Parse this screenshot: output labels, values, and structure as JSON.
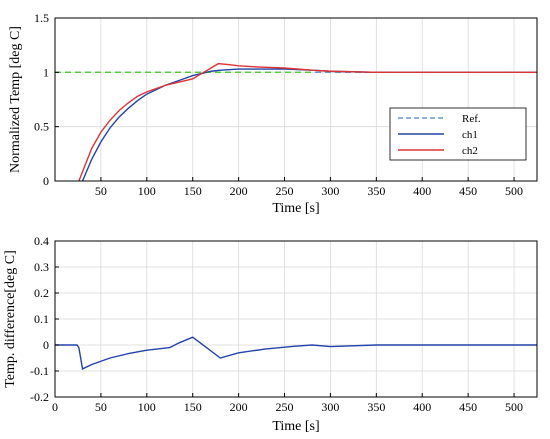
{
  "chart_data": [
    {
      "type": "line",
      "xlabel": "Time [s]",
      "ylabel": "Normalized Temp [deg C]",
      "xlim": [
        0,
        525
      ],
      "ylim": [
        0,
        1.5
      ],
      "xticks": [
        50,
        100,
        150,
        200,
        250,
        300,
        350,
        400,
        450,
        500
      ],
      "yticks": [
        0,
        0.5,
        1,
        1.5
      ],
      "xtick_labels": [
        "50",
        "100",
        "150",
        "200",
        "250",
        "300",
        "350",
        "400",
        "450",
        "500"
      ],
      "ytick_labels": [
        "0",
        "0.5",
        "1",
        "1.5"
      ],
      "grid": true,
      "legend": "right",
      "series": [
        {
          "name": "Ref.",
          "color": "#6699cc",
          "style": "dashed",
          "x": [
            0,
            525
          ],
          "y": [
            1,
            1
          ]
        },
        {
          "name": "",
          "color": "#55cc33",
          "style": "dashed",
          "x": [
            0,
            280
          ],
          "y": [
            1,
            1
          ]
        },
        {
          "name": "ch1",
          "color": "#2244aa",
          "style": "solid",
          "x": [
            30,
            40,
            50,
            60,
            70,
            80,
            90,
            100,
            110,
            120,
            130,
            140,
            150,
            160,
            170,
            180,
            200,
            220,
            250,
            280,
            300,
            350,
            400,
            450,
            500,
            525
          ],
          "y": [
            0,
            0.2,
            0.36,
            0.49,
            0.59,
            0.67,
            0.74,
            0.8,
            0.84,
            0.88,
            0.91,
            0.94,
            0.97,
            0.99,
            1.01,
            1.02,
            1.03,
            1.03,
            1.03,
            1.02,
            1.01,
            1.0,
            1.0,
            1.0,
            1.0,
            1.0
          ]
        },
        {
          "name": "ch2",
          "color": "#dd3333",
          "style": "solid",
          "x": [
            26,
            40,
            50,
            60,
            70,
            80,
            90,
            100,
            110,
            120,
            130,
            140,
            150,
            160,
            170,
            178,
            190,
            200,
            220,
            250,
            280,
            300,
            350,
            400,
            450,
            500,
            525
          ],
          "y": [
            0,
            0.3,
            0.45,
            0.56,
            0.65,
            0.72,
            0.78,
            0.82,
            0.85,
            0.88,
            0.9,
            0.92,
            0.94,
            0.99,
            1.04,
            1.08,
            1.07,
            1.06,
            1.05,
            1.04,
            1.02,
            1.01,
            1.0,
            1.0,
            1.0,
            1.0,
            1.0
          ]
        }
      ]
    },
    {
      "type": "line",
      "xlabel": "Time [s]",
      "ylabel": "Temp. difference[deg C]",
      "xlim": [
        0,
        525
      ],
      "ylim": [
        -0.2,
        0.4
      ],
      "xticks": [
        0,
        50,
        100,
        150,
        200,
        250,
        300,
        350,
        400,
        450,
        500
      ],
      "yticks": [
        -0.2,
        -0.1,
        0,
        0.1,
        0.2,
        0.3,
        0.4
      ],
      "xtick_labels": [
        "0",
        "50",
        "100",
        "150",
        "200",
        "250",
        "300",
        "350",
        "400",
        "450",
        "500"
      ],
      "ytick_labels": [
        "-0.2",
        "-0.1",
        "0",
        "0.1",
        "0.2",
        "0.3",
        "0.4"
      ],
      "grid": true,
      "series": [
        {
          "name": "",
          "color": "#2244aa",
          "style": "solid",
          "x": [
            0,
            24,
            26,
            30,
            40,
            60,
            80,
            100,
            125,
            135,
            150,
            165,
            180,
            200,
            230,
            260,
            280,
            300,
            350,
            400,
            450,
            500,
            525
          ],
          "y": [
            0,
            0,
            -0.01,
            -0.092,
            -0.075,
            -0.05,
            -0.033,
            -0.02,
            -0.01,
            0.008,
            0.03,
            -0.01,
            -0.05,
            -0.03,
            -0.015,
            -0.005,
            0.0,
            -0.006,
            0.0,
            0.0,
            0.0,
            0.0,
            0.0
          ]
        }
      ]
    }
  ]
}
